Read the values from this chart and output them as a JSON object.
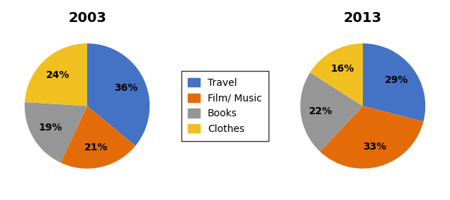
{
  "title_2003": "2003",
  "title_2013": "2013",
  "labels": [
    "Travel",
    "Film/ Music",
    "Books",
    "Clothes"
  ],
  "values_2003": [
    36,
    21,
    19,
    24
  ],
  "values_2013": [
    29,
    33,
    22,
    16
  ],
  "colors": [
    "#4472C4",
    "#E36C09",
    "#969696",
    "#F0C020"
  ],
  "pct_distance": 0.68,
  "background_color": "#ffffff",
  "title_fontsize": 14,
  "legend_fontsize": 10,
  "pct_fontsize": 10,
  "startangle_2003": 90,
  "startangle_2013": 90
}
